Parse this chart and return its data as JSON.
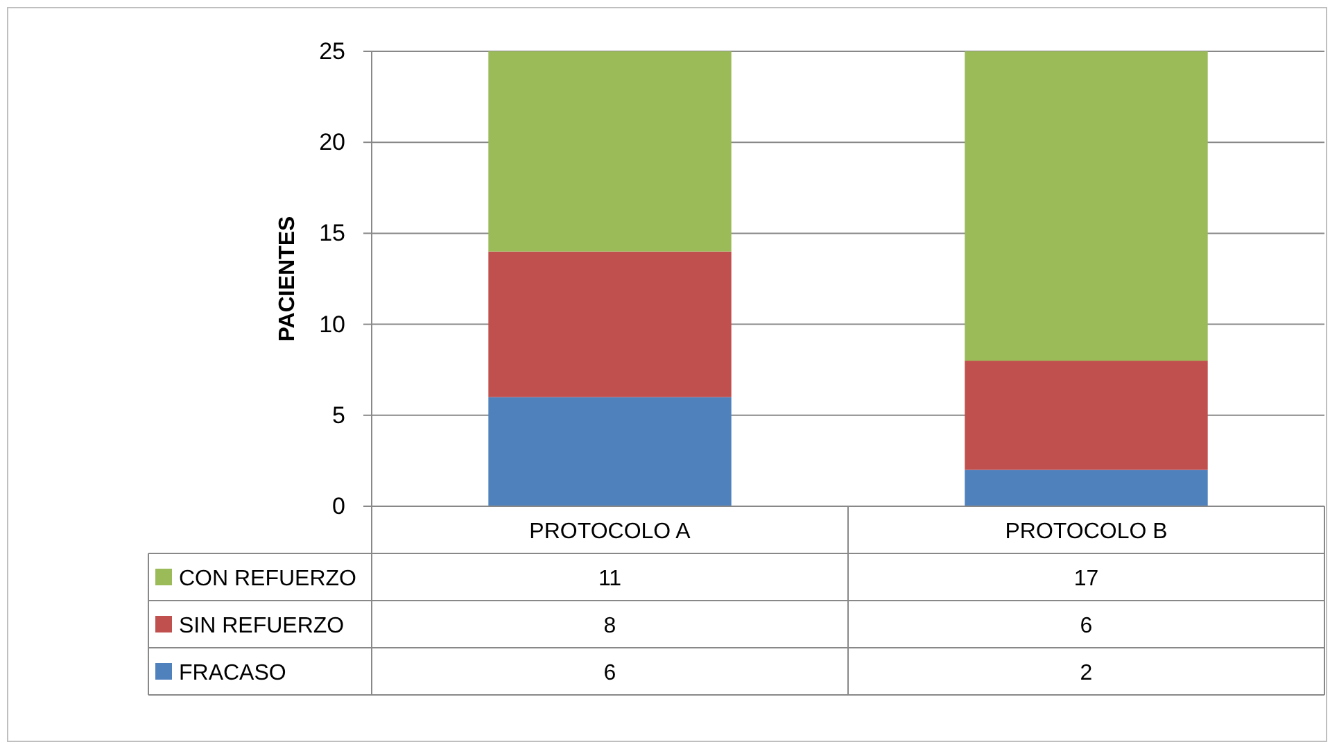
{
  "chart_data": {
    "type": "bar",
    "stacked": true,
    "ylabel": "PACIENTES",
    "categories": [
      "PROTOCOLO A",
      "PROTOCOLO B"
    ],
    "series": [
      {
        "name": "FRACASO",
        "color": "#4f81bd",
        "values": [
          6,
          2
        ]
      },
      {
        "name": "SIN REFUERZO",
        "color": "#c0504d",
        "values": [
          8,
          6
        ]
      },
      {
        "name": "CON REFUERZO",
        "color": "#9bbb59",
        "values": [
          11,
          17
        ]
      }
    ],
    "ylim": [
      0,
      25
    ],
    "yticks": [
      0,
      5,
      10,
      15,
      20,
      25
    ],
    "grid": "y",
    "legend": "bottom",
    "data_labels": true
  }
}
